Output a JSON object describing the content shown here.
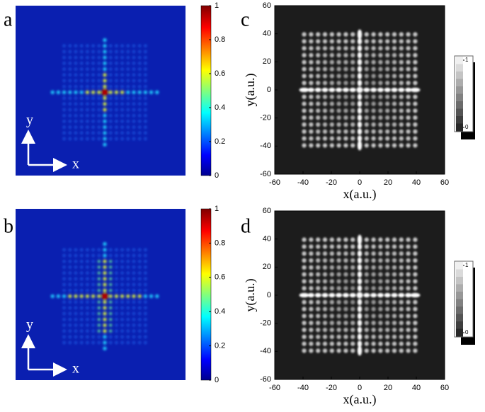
{
  "chart_data": [
    {
      "type": "heatmap",
      "panel_label": "a",
      "xlabel": "x",
      "ylabel": "y",
      "colormap": "jet",
      "colorbar_lim": [
        0,
        1
      ],
      "colorbar_ticks": [
        0,
        0.2,
        0.4,
        0.6,
        0.8,
        1
      ]
    },
    {
      "type": "simulation",
      "panel_label": "c",
      "xlabel": "x(a.u.)",
      "ylabel": "y(a.u.)",
      "colormap": "gray",
      "xlim": [
        -60,
        60
      ],
      "xticks": [
        -60,
        -40,
        -20,
        0,
        20,
        40,
        60
      ],
      "ylim": [
        -60,
        60
      ],
      "yticks": [
        -60,
        -40,
        -20,
        0,
        20,
        40,
        60
      ],
      "colorbar_lim": [
        0,
        1
      ],
      "colorbar_ticks": [
        0,
        1
      ]
    },
    {
      "type": "heatmap",
      "panel_label": "b",
      "xlabel": "x",
      "ylabel": "y",
      "colormap": "jet",
      "colorbar_lim": [
        0,
        1
      ],
      "colorbar_ticks": [
        0,
        0.2,
        0.4,
        0.6,
        0.8,
        1
      ]
    },
    {
      "type": "simulation",
      "panel_label": "d",
      "xlabel": "x(a.u.)",
      "ylabel": "y(a.u.)",
      "colormap": "gray",
      "xlim": [
        -60,
        60
      ],
      "xticks": [
        -60,
        -40,
        -20,
        0,
        20,
        40,
        60
      ],
      "ylim": [
        -60,
        60
      ],
      "yticks": [
        -60,
        -40,
        -20,
        0,
        20,
        40,
        60
      ],
      "colorbar_lim": [
        0,
        1
      ],
      "colorbar_ticks": [
        0,
        1
      ]
    }
  ]
}
